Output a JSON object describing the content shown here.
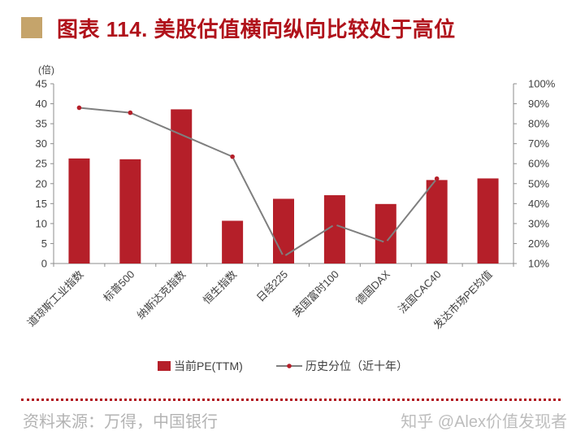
{
  "title": "图表 114. 美股估值横向纵向比较处于高位",
  "source": "资料来源：万得，中国银行",
  "watermark": "知乎 @Alex价值发现者",
  "colors": {
    "bar": "#b51f29",
    "line": "#7f7f7f",
    "line_marker": "#b51f29",
    "title": "#b0121b",
    "title_square": "#c5a46b"
  },
  "chart_data": {
    "type": "bar",
    "categories": [
      "道琼斯工业指数",
      "标普500",
      "纳斯达克指数",
      "恒生指数",
      "日经225",
      "英国富时100",
      "德国DAX",
      "法国CAC40",
      "发达市场PE均值"
    ],
    "series": [
      {
        "name": "当前PE(TTM)",
        "type": "bar",
        "axis": "left",
        "values": [
          26.3,
          26.1,
          38.6,
          10.7,
          16.2,
          17.1,
          14.9,
          20.9,
          21.3
        ]
      },
      {
        "name": "历史分位（近十年）",
        "type": "line",
        "axis": "right",
        "values": [
          88,
          85.5,
          null,
          63.5,
          13.5,
          29.5,
          20.5,
          52.5,
          null
        ]
      }
    ],
    "y_left": {
      "label": "(倍)",
      "min": 0,
      "max": 45,
      "ticks": [
        0,
        5,
        10,
        15,
        20,
        25,
        30,
        35,
        40,
        45
      ]
    },
    "y_right": {
      "min": 10,
      "max": 100,
      "ticks": [
        "10%",
        "20%",
        "30%",
        "40%",
        "50%",
        "60%",
        "70%",
        "80%",
        "90%",
        "100%"
      ]
    },
    "legend_position": "bottom",
    "grid": false
  }
}
